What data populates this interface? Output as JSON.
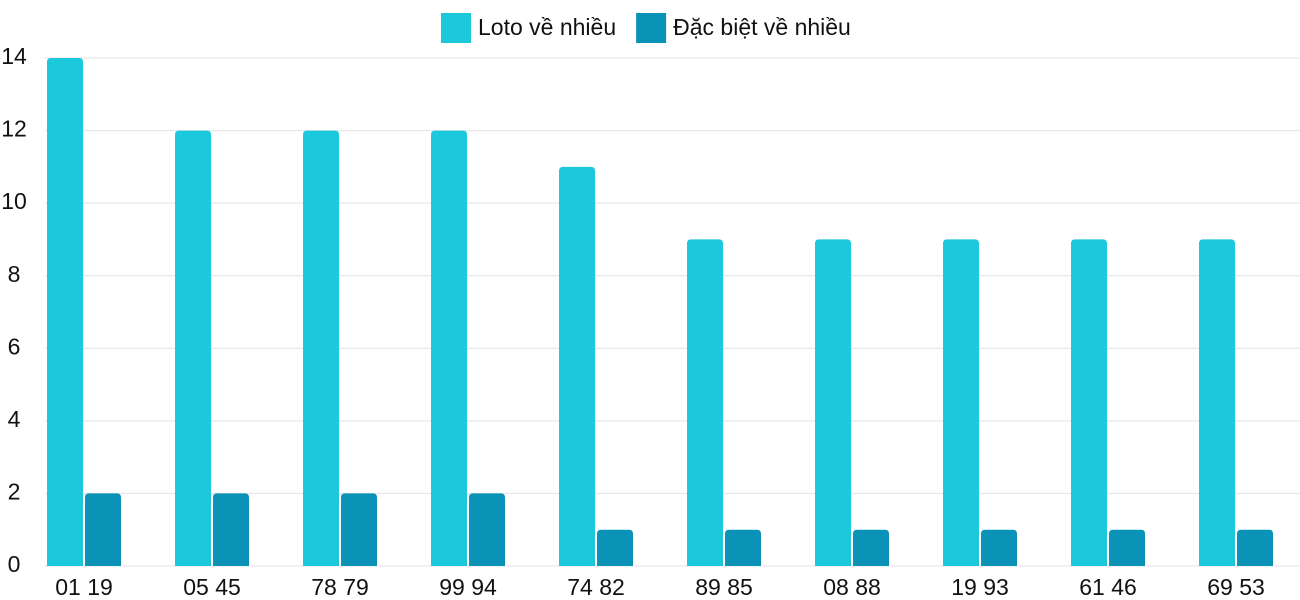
{
  "chart_data": {
    "type": "bar",
    "categories": [
      "01 19",
      "05 45",
      "78 79",
      "99 94",
      "74 82",
      "89 85",
      "08 88",
      "19 93",
      "61 46",
      "69 53"
    ],
    "series": [
      {
        "name": "Loto về nhiều",
        "color": "#1bc8dc",
        "values": [
          14,
          12,
          12,
          12,
          11,
          9,
          9,
          9,
          9,
          9
        ]
      },
      {
        "name": "Đặc biệt về nhiều",
        "color": "#0a93b7",
        "values": [
          2,
          2,
          2,
          2,
          1,
          1,
          1,
          1,
          1,
          1
        ]
      }
    ],
    "ylim": [
      0,
      14
    ],
    "yticks": [
      0,
      2,
      4,
      6,
      8,
      10,
      12,
      14
    ],
    "grid": true,
    "legend": "top"
  }
}
